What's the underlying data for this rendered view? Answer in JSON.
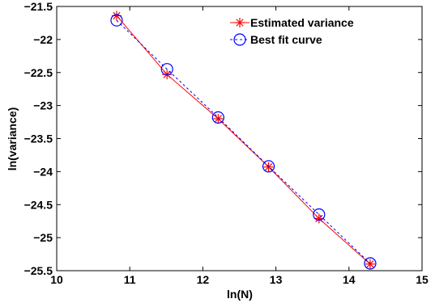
{
  "chart_data": {
    "type": "line",
    "title": "",
    "xlabel": "ln(N)",
    "ylabel": "ln(variance)",
    "xlim": [
      10,
      15
    ],
    "ylim": [
      -25.5,
      -21.5
    ],
    "xticks": [
      10,
      11,
      12,
      13,
      14,
      15
    ],
    "xtick_labels": [
      "10",
      "11",
      "12",
      "13",
      "14",
      "15"
    ],
    "yticks": [
      -21.5,
      -22,
      -22.5,
      -23,
      -23.5,
      -24,
      -24.5,
      -25,
      -25.5
    ],
    "ytick_labels": [
      "−21.5",
      "−22",
      "−22.5",
      "−23",
      "−23.5",
      "−24",
      "−24.5",
      "−25",
      "−25.5"
    ],
    "grid": false,
    "legend_position": "top-right",
    "series": [
      {
        "name": "Estimated variance",
        "color": "#ff0000",
        "marker": "asterisk",
        "line_style": "solid",
        "x": [
          10.82,
          11.51,
          12.21,
          12.9,
          13.59,
          14.29
        ],
        "y": [
          -21.64,
          -22.53,
          -23.2,
          -23.93,
          -24.71,
          -25.4
        ]
      },
      {
        "name": "Best fit curve",
        "color": "#0000ff",
        "marker": "circle",
        "line_style": "dashed",
        "x": [
          10.82,
          11.51,
          12.21,
          12.9,
          13.59,
          14.29
        ],
        "y": [
          -21.71,
          -22.45,
          -23.18,
          -23.92,
          -24.65,
          -25.39
        ]
      }
    ]
  }
}
